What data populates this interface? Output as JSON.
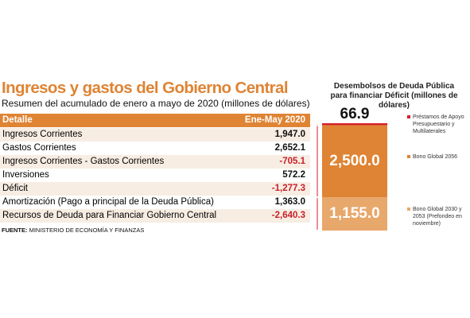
{
  "header": {
    "title": "Ingresos y gastos del Gobierno Central",
    "subtitle": "Resumen del acumulado de enero a mayo de 2020 (millones de dólares)"
  },
  "table": {
    "columns": [
      "Detalle",
      "Ene-May 2020"
    ],
    "rows": [
      [
        "Ingresos Corrientes",
        "1,947.0"
      ],
      [
        "Gastos Corrientes",
        "2,652.1"
      ],
      [
        "Ingresos Corrientes - Gastos Corrientes",
        "-705.1"
      ],
      [
        "Inversiones",
        "572.2"
      ],
      [
        "Déficit",
        "-1,277.3"
      ],
      [
        "Amortización (Pago a principal de la Deuda Pública)",
        "1,363.0"
      ],
      [
        "Recursos de Deuda para Financiar Gobierno Central",
        "-2,640.3"
      ]
    ]
  },
  "source": {
    "label": "FUENTE:",
    "text": "MINISTERIO DE ECONOMÍA Y FINANZAS"
  },
  "chart_data": {
    "type": "stacked_bar",
    "title": "Desembolsos de Deuda Pública para financiar Déficit (millones de dólares)",
    "series": [
      {
        "name": "Bono Global 2030 y 2053 (Prefondeo en noviembre)",
        "color": "#e8a76b",
        "values": [
          1155.0
        ],
        "value_labels": [
          "1,155.0"
        ]
      },
      {
        "name": "Bono Global 2056",
        "color": "#df8434",
        "values": [
          2500.0
        ],
        "value_labels": [
          "2,500.0"
        ]
      },
      {
        "name": "Préstamos de Apoyo Presupuestario y Multilaterales",
        "color": "#d6202a",
        "values": [
          66.9
        ],
        "value_labels": [
          "66.9"
        ]
      }
    ]
  }
}
